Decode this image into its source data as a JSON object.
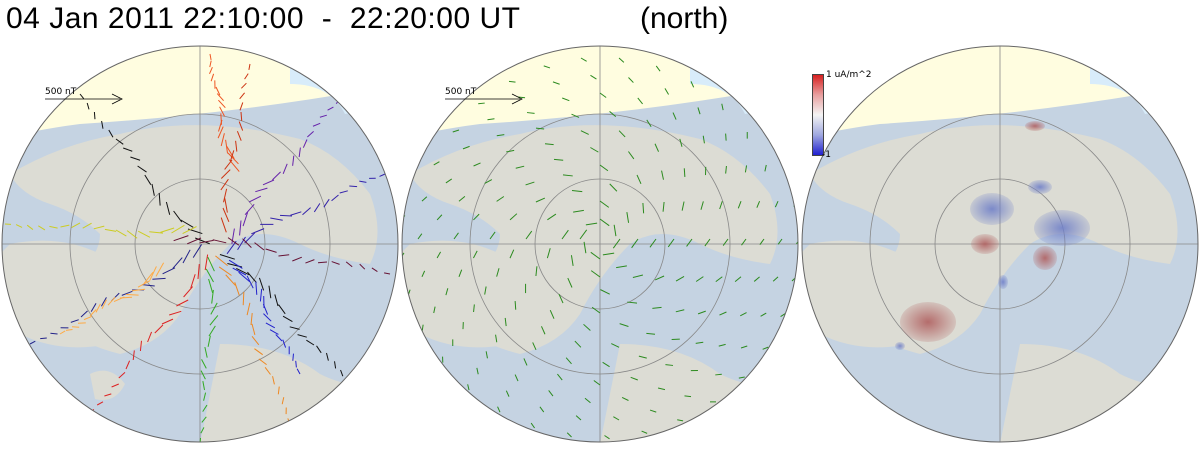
{
  "header": {
    "time_range": "04 Jan 2011 22:10:00  -  22:20:00 UT",
    "hemisphere": "(north)"
  },
  "panels": {
    "ground_vectors": {
      "scale_label": "500 nT"
    },
    "equivalent_currents": {
      "scale_label": "500 nT"
    },
    "field_aligned_currents": {
      "colorbar": {
        "max_label": "1 uA/m^2",
        "min_label": "-1",
        "colors": [
          "#d62020",
          "#e8a0a0",
          "#f4f4f4",
          "#a0a8e0",
          "#2020d0"
        ]
      }
    }
  },
  "colors": {
    "ocean": "#c5d3e2",
    "land": "#dcdcd4",
    "dayside": "#fffde0",
    "grid": "#888888",
    "ice": "#d8ecfa",
    "eq_vectors": "#2b8a1e"
  }
}
